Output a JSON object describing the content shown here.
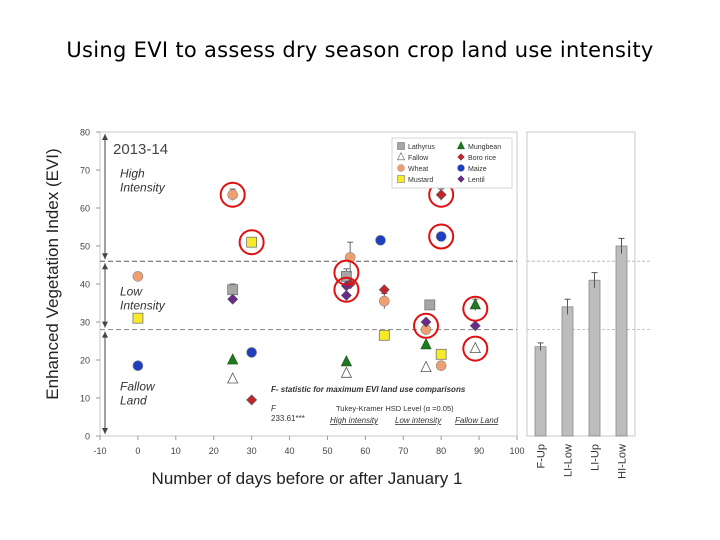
{
  "slide": {
    "title": "Using EVI to assess dry season crop land use intensity",
    "significance": "***"
  },
  "chart_data": [
    {
      "type": "scatter",
      "title": "2013-14",
      "xlabel": "Number of days before or after January 1",
      "ylabel": "Enhanced Vegetation Index (EVI)",
      "xlim": [
        -10,
        100
      ],
      "ylim": [
        0,
        80
      ],
      "xticks": [
        "-10",
        "0",
        "10",
        "20",
        "30",
        "40",
        "50",
        "60",
        "70",
        "80",
        "90",
        "100"
      ],
      "yticks": [
        "0",
        "10",
        "20",
        "30",
        "40",
        "50",
        "60",
        "70",
        "80"
      ],
      "legend_position": "top-right",
      "legend": [
        {
          "name": "Lathyrus",
          "marker": "square",
          "color": "#a6a6a6"
        },
        {
          "name": "Mungbean",
          "marker": "triangle",
          "color": "#1e7a1e"
        },
        {
          "name": "Fallow",
          "marker": "triangle-open",
          "color": "#ffffff"
        },
        {
          "name": "Boro rice",
          "marker": "diamond",
          "color": "#c0272d"
        },
        {
          "name": "Wheat",
          "marker": "circle",
          "color": "#f0a070"
        },
        {
          "name": "Maize",
          "marker": "circle",
          "color": "#1f3fbf"
        },
        {
          "name": "Mustard",
          "marker": "square",
          "color": "#f7ea28"
        },
        {
          "name": "Lentil",
          "marker": "diamond",
          "color": "#6a2a8a"
        }
      ],
      "zone_labels": [
        {
          "text": "High\nIntensity",
          "y": 68
        },
        {
          "text": "Low\nIntensity",
          "y": 37
        },
        {
          "text": "Fallow\nLand",
          "y": 12
        }
      ],
      "thresholds": [
        46,
        28
      ],
      "series": [
        {
          "name": "Lathyrus",
          "points": [
            {
              "x": 25,
              "y": 38.5,
              "err": 1.5
            },
            {
              "x": 55,
              "y": 42,
              "err": 2
            },
            {
              "x": 77,
              "y": 34.5,
              "err": 1
            }
          ]
        },
        {
          "name": "Fallow",
          "points": [
            {
              "x": 25,
              "y": 15
            },
            {
              "x": 55,
              "y": 16.5
            },
            {
              "x": 76,
              "y": 18
            },
            {
              "x": 89,
              "y": 23
            }
          ]
        },
        {
          "name": "Wheat",
          "points": [
            {
              "x": 0,
              "y": 42
            },
            {
              "x": 25,
              "y": 63.5,
              "err": 1.5
            },
            {
              "x": 56,
              "y": 47,
              "err": 4
            },
            {
              "x": 65,
              "y": 35.5,
              "err": 2
            },
            {
              "x": 76,
              "y": 28
            },
            {
              "x": 80,
              "y": 18.5
            }
          ]
        },
        {
          "name": "Mustard",
          "points": [
            {
              "x": 0,
              "y": 31
            },
            {
              "x": 30,
              "y": 51
            },
            {
              "x": 65,
              "y": 26.5
            },
            {
              "x": 80,
              "y": 21.5
            }
          ]
        },
        {
          "name": "Mungbean",
          "points": [
            {
              "x": 25,
              "y": 20
            },
            {
              "x": 55,
              "y": 19.5
            },
            {
              "x": 76,
              "y": 24
            },
            {
              "x": 89,
              "y": 34.5,
              "err": 1.5
            }
          ]
        },
        {
          "name": "Boro rice",
          "points": [
            {
              "x": 30,
              "y": 9.5
            },
            {
              "x": 56,
              "y": 40
            },
            {
              "x": 65,
              "y": 38.5
            },
            {
              "x": 80,
              "y": 63.5,
              "err": 1.5
            }
          ]
        },
        {
          "name": "Maize",
          "points": [
            {
              "x": 0,
              "y": 18.5
            },
            {
              "x": 30,
              "y": 22
            },
            {
              "x": 64,
              "y": 51.5
            },
            {
              "x": 80,
              "y": 52.5
            }
          ]
        },
        {
          "name": "Lentil",
          "points": [
            {
              "x": 25,
              "y": 36
            },
            {
              "x": 55,
              "y": 39.5
            },
            {
              "x": 55,
              "y": 37
            },
            {
              "x": 76,
              "y": 30
            },
            {
              "x": 89,
              "y": 29
            }
          ]
        }
      ],
      "highlighted": [
        {
          "x": 25,
          "y": 63.5
        },
        {
          "x": 30,
          "y": 51
        },
        {
          "x": 55,
          "y": 43
        },
        {
          "x": 55,
          "y": 38.5
        },
        {
          "x": 80,
          "y": 63.5
        },
        {
          "x": 80,
          "y": 52.5
        },
        {
          "x": 76,
          "y": 29
        },
        {
          "x": 89,
          "y": 33.5
        },
        {
          "x": 89,
          "y": 23
        }
      ],
      "annotation": {
        "title": "F- statistic for maximum EVI land use comparisons",
        "f_label": "F",
        "f_value": "233.61***",
        "hsd_label": "Tukey-Kramer HSD Level (α =0.05)",
        "levels": [
          "High intensity",
          "Low intensity",
          "Fallow Land"
        ]
      }
    },
    {
      "type": "bar",
      "categories": [
        "F-Up",
        "LI-Low",
        "LI-Up",
        "HI-Low"
      ],
      "values": [
        23.5,
        34,
        41,
        50
      ],
      "errors": [
        1,
        2,
        2,
        2
      ],
      "ylim": [
        0,
        80
      ],
      "reference_lines": [
        46,
        28
      ]
    }
  ]
}
